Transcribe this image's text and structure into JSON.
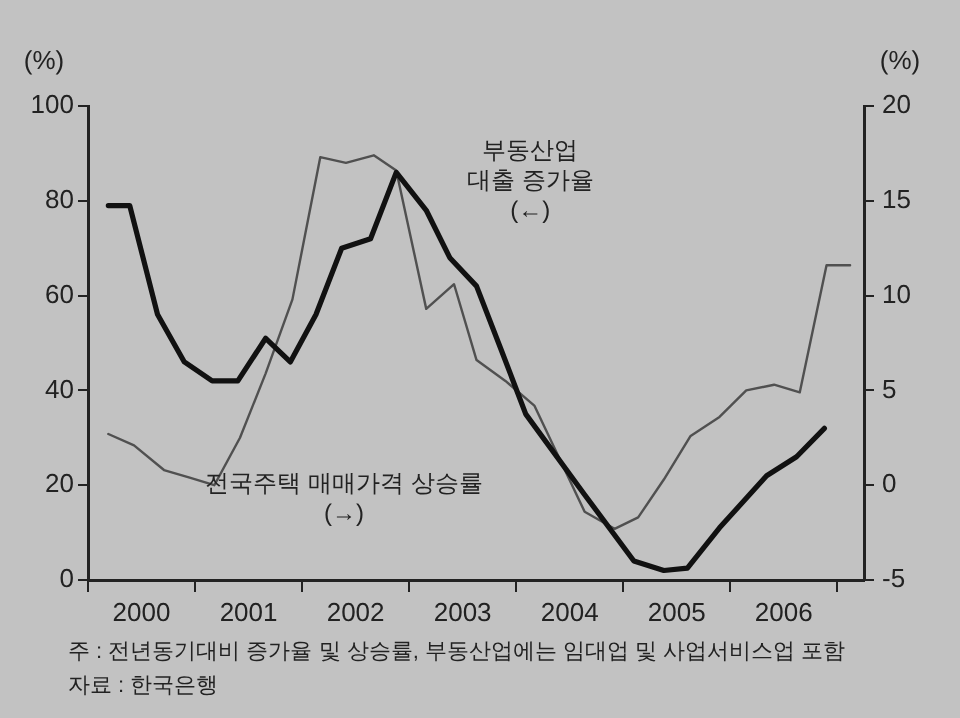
{
  "chart_data": {
    "type": "line",
    "ylabel": "(%)",
    "y2label": "(%)",
    "xlim": [
      2000,
      2007.25
    ],
    "xticks": [
      {
        "value": 2000,
        "label": null
      },
      {
        "value": 2000.5,
        "label": "2000"
      },
      {
        "value": 2001,
        "label": null
      },
      {
        "value": 2001.5,
        "label": "2001"
      },
      {
        "value": 2002,
        "label": null
      },
      {
        "value": 2002.5,
        "label": "2002"
      },
      {
        "value": 2003,
        "label": null
      },
      {
        "value": 2003.5,
        "label": "2003"
      },
      {
        "value": 2004,
        "label": null
      },
      {
        "value": 2004.5,
        "label": "2004"
      },
      {
        "value": 2005,
        "label": null
      },
      {
        "value": 2005.5,
        "label": "2005"
      },
      {
        "value": 2006,
        "label": null
      },
      {
        "value": 2006.5,
        "label": "2006"
      },
      {
        "value": 2007,
        "label": null
      }
    ],
    "ylim": [
      0,
      100
    ],
    "yticks": [
      0,
      20,
      40,
      60,
      80,
      100
    ],
    "y2lim": [
      -5,
      20
    ],
    "y2ticks": [
      -5,
      0,
      5,
      10,
      15,
      20
    ],
    "grid": false,
    "legend": false,
    "marker": "none",
    "line_style": "solid",
    "series": [
      {
        "name": "부동산업\n대출 증가율\n(←)",
        "color": "#111111",
        "x": [
          2000.19,
          2000.39,
          2000.65,
          2000.9,
          2001.16,
          2001.4,
          2001.66,
          2001.89,
          2002.13,
          2002.37,
          2002.64,
          2002.88,
          2003.16,
          2003.38,
          2003.63,
          2003.87,
          2004.09,
          2004.64,
          2005.1,
          2005.38,
          2005.6,
          2005.9,
          2006.34,
          2006.62,
          2006.88
        ],
        "values": [
          79,
          79,
          56,
          46,
          42,
          42,
          51,
          46,
          56,
          70,
          72,
          86,
          78,
          68,
          62,
          48,
          35,
          18,
          4,
          2,
          2.5,
          11,
          22,
          26,
          32
        ]
      },
      {
        "name": "전국주택 매매가격 상승률\n(→)",
        "axis": "y2",
        "color": "#505050",
        "x": [
          2000.19,
          2000.43,
          2000.71,
          2000.95,
          2001.18,
          2001.42,
          2001.66,
          2001.91,
          2002.17,
          2002.41,
          2002.67,
          2002.88,
          2003.16,
          2003.42,
          2003.63,
          2003.9,
          2004.17,
          2004.64,
          2004.92,
          2005.14,
          2005.38,
          2005.63,
          2005.9,
          2006.15,
          2006.41,
          2006.65,
          2006.9,
          2007.12
        ],
        "values": [
          2.7,
          2.1,
          0.8,
          0.4,
          0,
          2.5,
          5.9,
          9.8,
          17.3,
          17,
          17.4,
          16.6,
          9.3,
          10.6,
          6.6,
          5.5,
          4.2,
          -1.4,
          -2.3,
          -1.7,
          0.3,
          2.6,
          3.6,
          5,
          5.3,
          4.9,
          11.6,
          11.6
        ]
      }
    ],
    "annotations": [
      "주 : 전년동기대비 증가율 및 상승률, 부동산업에는 임대업 및 사업서비스업 포함",
      "자료 : 한국은행"
    ]
  }
}
